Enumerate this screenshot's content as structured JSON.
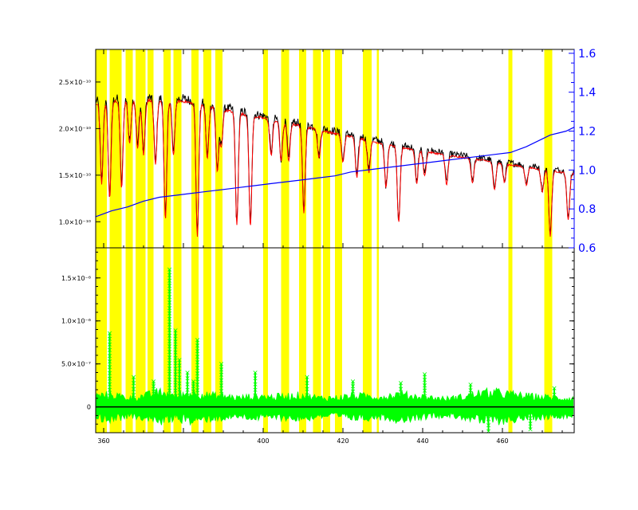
{
  "chart_data": [
    {
      "panel": "top",
      "type": "line",
      "title": "",
      "xlabel": "",
      "ylabel": "",
      "xlim": [
        358,
        478
      ],
      "ylim": [
        7.2e-11,
        2.85e-10
      ],
      "y2lim": [
        0.6,
        1.62
      ],
      "x_ticks": [
        {
          "value": 360,
          "label": "360"
        },
        {
          "value": 400,
          "label": "400"
        },
        {
          "value": 420,
          "label": "420"
        },
        {
          "value": 440,
          "label": "440"
        },
        {
          "value": 460,
          "label": "460"
        }
      ],
      "y_ticks": [
        {
          "value": 1e-10,
          "label": "1.0×10⁻¹⁰"
        },
        {
          "value": 1.5e-10,
          "label": "1.5×10⁻¹⁰"
        },
        {
          "value": 2e-10,
          "label": "2.0×10⁻¹⁰"
        },
        {
          "value": 2.5e-10,
          "label": "2.5×10⁻¹⁰"
        }
      ],
      "y2_ticks": [
        {
          "value": 0.6,
          "label": "0.6"
        },
        {
          "value": 0.8,
          "label": "0.8"
        },
        {
          "value": 1.0,
          "label": "1.0"
        },
        {
          "value": 1.2,
          "label": "1.2"
        },
        {
          "value": 1.4,
          "label": "1.4"
        },
        {
          "value": 1.6,
          "label": "1.6"
        }
      ],
      "grid": false,
      "legend": "none",
      "continuum": [
        [
          358,
          2.3e-10
        ],
        [
          365,
          2.33e-10
        ],
        [
          372,
          2.33e-10
        ],
        [
          380,
          2.32e-10
        ],
        [
          388,
          2.25e-10
        ],
        [
          395,
          2.18e-10
        ],
        [
          402,
          2.12e-10
        ],
        [
          410,
          2.05e-10
        ],
        [
          418,
          1.97e-10
        ],
        [
          425,
          1.91e-10
        ],
        [
          432,
          1.84e-10
        ],
        [
          440,
          1.78e-10
        ],
        [
          448,
          1.72e-10
        ],
        [
          455,
          1.68e-10
        ],
        [
          462,
          1.63e-10
        ],
        [
          470,
          1.58e-10
        ],
        [
          478,
          1.53e-10
        ]
      ],
      "absorption_lines": [
        {
          "x": 359.5,
          "depth": 0.38
        },
        {
          "x": 361.5,
          "depth": 0.45
        },
        {
          "x": 364.5,
          "depth": 0.4
        },
        {
          "x": 366.5,
          "depth": 0.2
        },
        {
          "x": 368.5,
          "depth": 0.22
        },
        {
          "x": 370.0,
          "depth": 0.25
        },
        {
          "x": 373.0,
          "depth": 0.3
        },
        {
          "x": 375.5,
          "depth": 0.55
        },
        {
          "x": 377.5,
          "depth": 0.25
        },
        {
          "x": 383.5,
          "depth": 0.62
        },
        {
          "x": 386.0,
          "depth": 0.25
        },
        {
          "x": 388.5,
          "depth": 0.3
        },
        {
          "x": 389.5,
          "depth": 0.18
        },
        {
          "x": 393.4,
          "depth": 0.55
        },
        {
          "x": 396.8,
          "depth": 0.55
        },
        {
          "x": 402.0,
          "depth": 0.18
        },
        {
          "x": 404.5,
          "depth": 0.2
        },
        {
          "x": 406.4,
          "depth": 0.2
        },
        {
          "x": 410.2,
          "depth": 0.45
        },
        {
          "x": 414.0,
          "depth": 0.15
        },
        {
          "x": 420.0,
          "depth": 0.15
        },
        {
          "x": 423.5,
          "depth": 0.22
        },
        {
          "x": 426.5,
          "depth": 0.18
        },
        {
          "x": 430.8,
          "depth": 0.25
        },
        {
          "x": 434.0,
          "depth": 0.45
        },
        {
          "x": 438.5,
          "depth": 0.2
        },
        {
          "x": 440.5,
          "depth": 0.15
        },
        {
          "x": 446.0,
          "depth": 0.18
        },
        {
          "x": 452.5,
          "depth": 0.15
        },
        {
          "x": 458.0,
          "depth": 0.18
        },
        {
          "x": 460.5,
          "depth": 0.12
        },
        {
          "x": 466.0,
          "depth": 0.12
        },
        {
          "x": 470.0,
          "depth": 0.15
        },
        {
          "x": 472.0,
          "depth": 0.45
        },
        {
          "x": 476.5,
          "depth": 0.33
        }
      ],
      "series": [
        {
          "role": "observed",
          "color": "#000000",
          "noise": 0.022,
          "offset": 0.0
        },
        {
          "role": "model",
          "color": "#ff0000",
          "noise": 0.006,
          "offset": -0.012
        }
      ],
      "ratio_curve": {
        "color": "#0000ff",
        "points": [
          [
            358,
            0.76
          ],
          [
            362,
            0.79
          ],
          [
            366,
            0.81
          ],
          [
            370,
            0.84
          ],
          [
            374,
            0.86
          ],
          [
            378,
            0.87
          ],
          [
            382,
            0.88
          ],
          [
            386,
            0.89
          ],
          [
            390,
            0.9
          ],
          [
            394,
            0.91
          ],
          [
            398,
            0.92
          ],
          [
            402,
            0.93
          ],
          [
            406,
            0.94
          ],
          [
            410,
            0.95
          ],
          [
            414,
            0.96
          ],
          [
            418,
            0.97
          ],
          [
            422,
            0.99
          ],
          [
            426,
            1.0
          ],
          [
            430,
            1.01
          ],
          [
            434,
            1.02
          ],
          [
            438,
            1.03
          ],
          [
            442,
            1.04
          ],
          [
            446,
            1.05
          ],
          [
            450,
            1.06
          ],
          [
            454,
            1.07
          ],
          [
            458,
            1.08
          ],
          [
            462,
            1.09
          ],
          [
            466,
            1.12
          ],
          [
            470,
            1.16
          ],
          [
            472,
            1.18
          ],
          [
            474,
            1.19
          ],
          [
            476,
            1.2
          ],
          [
            478,
            1.22
          ]
        ]
      }
    },
    {
      "panel": "bottom",
      "type": "scatter",
      "title": "",
      "xlabel": "",
      "ylabel": "",
      "xlim": [
        358,
        478
      ],
      "ylim": [
        -3e-07,
        1.85e-06
      ],
      "x_ticks": [
        {
          "value": 360,
          "label": "360"
        },
        {
          "value": 400,
          "label": "400"
        },
        {
          "value": 420,
          "label": "420"
        },
        {
          "value": 440,
          "label": "440"
        },
        {
          "value": 460,
          "label": "460"
        }
      ],
      "y_ticks": [
        {
          "value": 0,
          "label": "0"
        },
        {
          "value": 5e-07,
          "label": "5.0×10⁻⁷"
        },
        {
          "value": 1e-06,
          "label": "1.0×10⁻⁶"
        },
        {
          "value": 1.5e-06,
          "label": "1.5×10⁻⁶"
        }
      ],
      "grid": false,
      "legend": "none",
      "zero_line_color": "#000000",
      "residual_color": "#00ff00",
      "residual_band": [
        [
          358,
          1.2e-07
        ],
        [
          362,
          1.4e-07
        ],
        [
          366,
          1e-07
        ],
        [
          370,
          1.2e-07
        ],
        [
          374,
          1.6e-07
        ],
        [
          378,
          1.2e-07
        ],
        [
          382,
          1.6e-07
        ],
        [
          386,
          1.3e-07
        ],
        [
          390,
          1.2e-07
        ],
        [
          394,
          1e-07
        ],
        [
          398,
          1.2e-07
        ],
        [
          402,
          1.1e-07
        ],
        [
          406,
          1.2e-07
        ],
        [
          410,
          1.3e-07
        ],
        [
          414,
          1e-07
        ],
        [
          418,
          1e-07
        ],
        [
          422,
          1.2e-07
        ],
        [
          426,
          1.2e-07
        ],
        [
          430,
          1.1e-07
        ],
        [
          434,
          1.4e-07
        ],
        [
          438,
          1.2e-07
        ],
        [
          442,
          1e-07
        ],
        [
          446,
          9e-08
        ],
        [
          450,
          1.1e-07
        ],
        [
          454,
          1.5e-07
        ],
        [
          458,
          1.6e-07
        ],
        [
          462,
          1.4e-07
        ],
        [
          466,
          1.2e-07
        ],
        [
          470,
          1.1e-07
        ],
        [
          474,
          1e-07
        ],
        [
          478,
          9e-08
        ]
      ],
      "residual_spikes": [
        {
          "x": 361.5,
          "y": 8.6e-07
        },
        {
          "x": 367.5,
          "y": 3.5e-07
        },
        {
          "x": 372.5,
          "y": 3e-07
        },
        {
          "x": 376.5,
          "y": 1.6e-06
        },
        {
          "x": 378.0,
          "y": 8.9e-07
        },
        {
          "x": 379.0,
          "y": 5.5e-07
        },
        {
          "x": 381.0,
          "y": 4e-07
        },
        {
          "x": 382.5,
          "y": 3e-07
        },
        {
          "x": 383.5,
          "y": 7.8e-07
        },
        {
          "x": 389.5,
          "y": 5e-07
        },
        {
          "x": 398.0,
          "y": 4e-07
        },
        {
          "x": 411.0,
          "y": 3.5e-07
        },
        {
          "x": 422.5,
          "y": 3e-07
        },
        {
          "x": 434.5,
          "y": 2.8e-07
        },
        {
          "x": 440.5,
          "y": 3.8e-07
        },
        {
          "x": 452.0,
          "y": 2.6e-07
        },
        {
          "x": 456.5,
          "y": -2.8e-07
        },
        {
          "x": 467.0,
          "y": -2.6e-07
        },
        {
          "x": 473.0,
          "y": 2.2e-07
        }
      ],
      "highlight_bands": [
        [
          358.0,
          360.8
        ],
        [
          361.5,
          364.5
        ],
        [
          365.5,
          367.3
        ],
        [
          368.0,
          370.5
        ],
        [
          371.0,
          372.5
        ],
        [
          375.0,
          376.8
        ],
        [
          377.5,
          379.5
        ],
        [
          382.0,
          383.8
        ],
        [
          385.0,
          387.0
        ],
        [
          388.0,
          389.8
        ],
        [
          400.0,
          401.2
        ],
        [
          404.5,
          406.5
        ],
        [
          409.0,
          410.8
        ],
        [
          412.5,
          414.5
        ],
        [
          415.0,
          416.8
        ],
        [
          418.0,
          419.8
        ],
        [
          425.0,
          427.2
        ],
        [
          428.5,
          429.0
        ],
        [
          461.5,
          462.5
        ],
        [
          470.5,
          472.5
        ]
      ]
    }
  ],
  "colors": {
    "highlight": "#ffff00",
    "observed": "#000000",
    "model": "#ff0000",
    "ratio": "#0000ff",
    "residual": "#00ff00",
    "right_axis": "#0000ff",
    "frame": "#000000"
  }
}
